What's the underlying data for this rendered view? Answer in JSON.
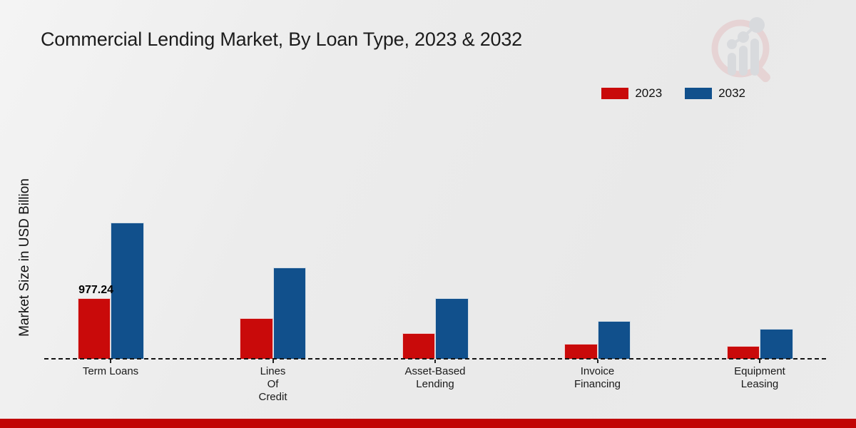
{
  "chart_data": {
    "type": "bar",
    "title": "Commercial Lending Market, By Loan Type, 2023 & 2032",
    "xlabel": "",
    "ylabel": "Market Size in USD Billion",
    "categories": [
      "Term Loans",
      "Lines Of Credit",
      "Asset-Based Lending",
      "Invoice Financing",
      "Equipment Leasing"
    ],
    "category_display_lines": [
      [
        "Term Loans"
      ],
      [
        "Lines",
        "Of",
        "Credit"
      ],
      [
        "Asset-Based",
        "Lending"
      ],
      [
        "Invoice",
        "Financing"
      ],
      [
        "Equipment",
        "Leasing"
      ]
    ],
    "series": [
      {
        "name": "2023",
        "color": "#c90a0a",
        "values": [
          977.24,
          655,
          414,
          241,
          207
        ]
      },
      {
        "name": "2032",
        "color": "#11508c",
        "values": [
          2196,
          1472,
          977,
          609,
          483
        ]
      }
    ],
    "annotations": [
      {
        "series": "2023",
        "category_index": 0,
        "text": "977.24"
      }
    ],
    "ylim": [
      0,
      2400
    ],
    "grid": false,
    "legend_position": "top-right",
    "baseline_style": "dashed"
  },
  "watermark": {
    "icon": "market-research-future-logo"
  },
  "footer": {
    "bar_color": "#c10505"
  }
}
